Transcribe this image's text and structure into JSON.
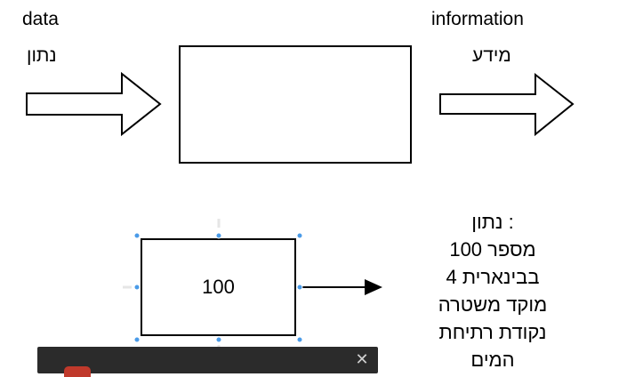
{
  "diagram": {
    "input_label_en": "data",
    "input_label_he": "נתון",
    "output_label_en": "information",
    "output_label_he": "מידע",
    "example_box_value": "100",
    "note_lines": [
      ": נתון",
      "מספר 100",
      "בבינארית 4",
      "מוקד משטרה",
      "נקודת רתיחת",
      "המים"
    ]
  },
  "panel": {
    "close_icon": "close-icon"
  },
  "colors": {
    "stroke": "#000000",
    "selection_handle": "#4a9be8",
    "panel_bg": "#2b2b2b",
    "panel_badge": "#c0392b"
  }
}
